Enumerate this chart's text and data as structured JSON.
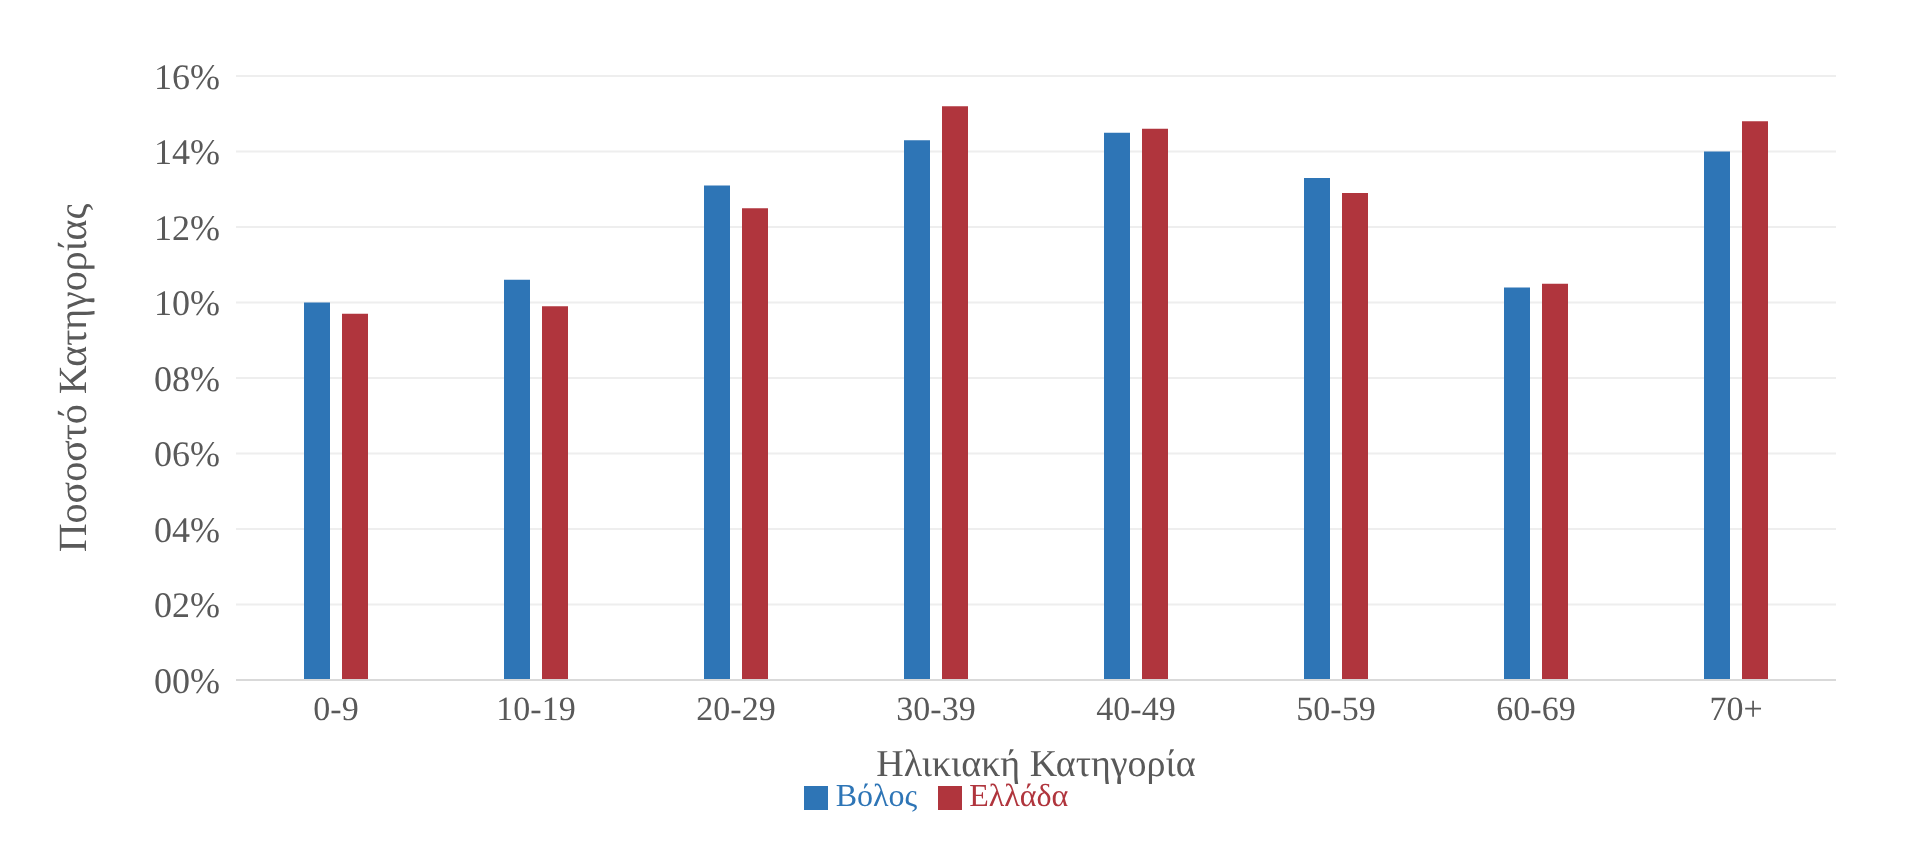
{
  "chart_data": {
    "type": "bar",
    "xlabel": "Ηλικιακή Κατηγορία",
    "ylabel": "Ποσοστό Κατηγορίας",
    "categories": [
      "0-9",
      "10-19",
      "20-29",
      "30-39",
      "40-49",
      "50-59",
      "60-69",
      "70+"
    ],
    "series": [
      {
        "name": "Βόλος",
        "color": "#2e75b6",
        "values": [
          10.0,
          10.6,
          13.1,
          14.3,
          14.5,
          13.3,
          10.4,
          14.0
        ]
      },
      {
        "name": "Ελλάδα",
        "color": "#b0353d",
        "values": [
          9.7,
          9.9,
          12.5,
          15.2,
          14.6,
          12.9,
          10.5,
          14.8
        ]
      }
    ],
    "ylim": [
      0,
      16
    ],
    "yticks": [
      {
        "value": 0,
        "label": "00%"
      },
      {
        "value": 2,
        "label": "02%"
      },
      {
        "value": 4,
        "label": "04%"
      },
      {
        "value": 6,
        "label": "06%"
      },
      {
        "value": 8,
        "label": "08%"
      },
      {
        "value": 10,
        "label": "10%"
      },
      {
        "value": 12,
        "label": "12%"
      },
      {
        "value": 14,
        "label": "14%"
      },
      {
        "value": 16,
        "label": "16%"
      }
    ],
    "grid": "y",
    "legend": "bottom"
  }
}
